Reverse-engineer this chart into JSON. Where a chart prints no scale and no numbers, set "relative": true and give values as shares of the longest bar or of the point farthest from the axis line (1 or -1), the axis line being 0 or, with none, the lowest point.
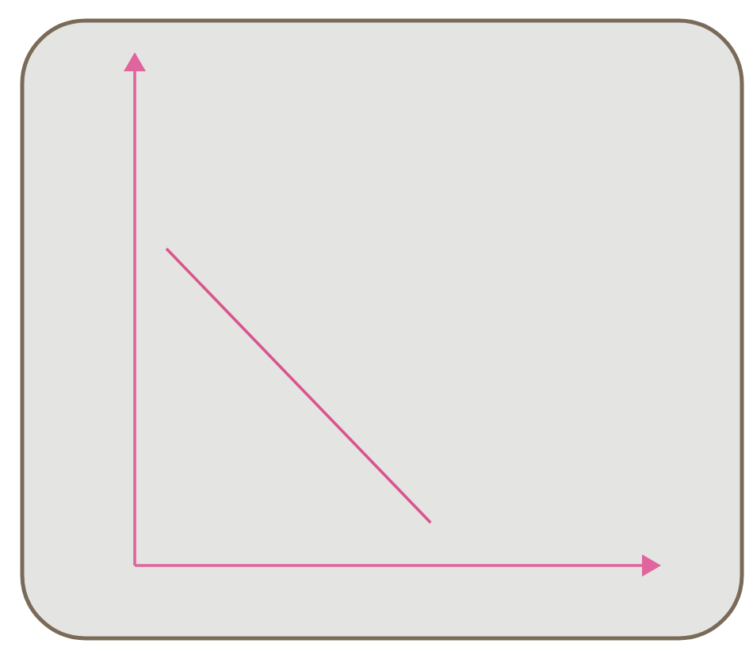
{
  "chart_data": {
    "type": "line",
    "relative": true,
    "categories": [
      null,
      null
    ],
    "values": [
      1,
      0.135
    ],
    "color": "#d9558c"
  }
}
